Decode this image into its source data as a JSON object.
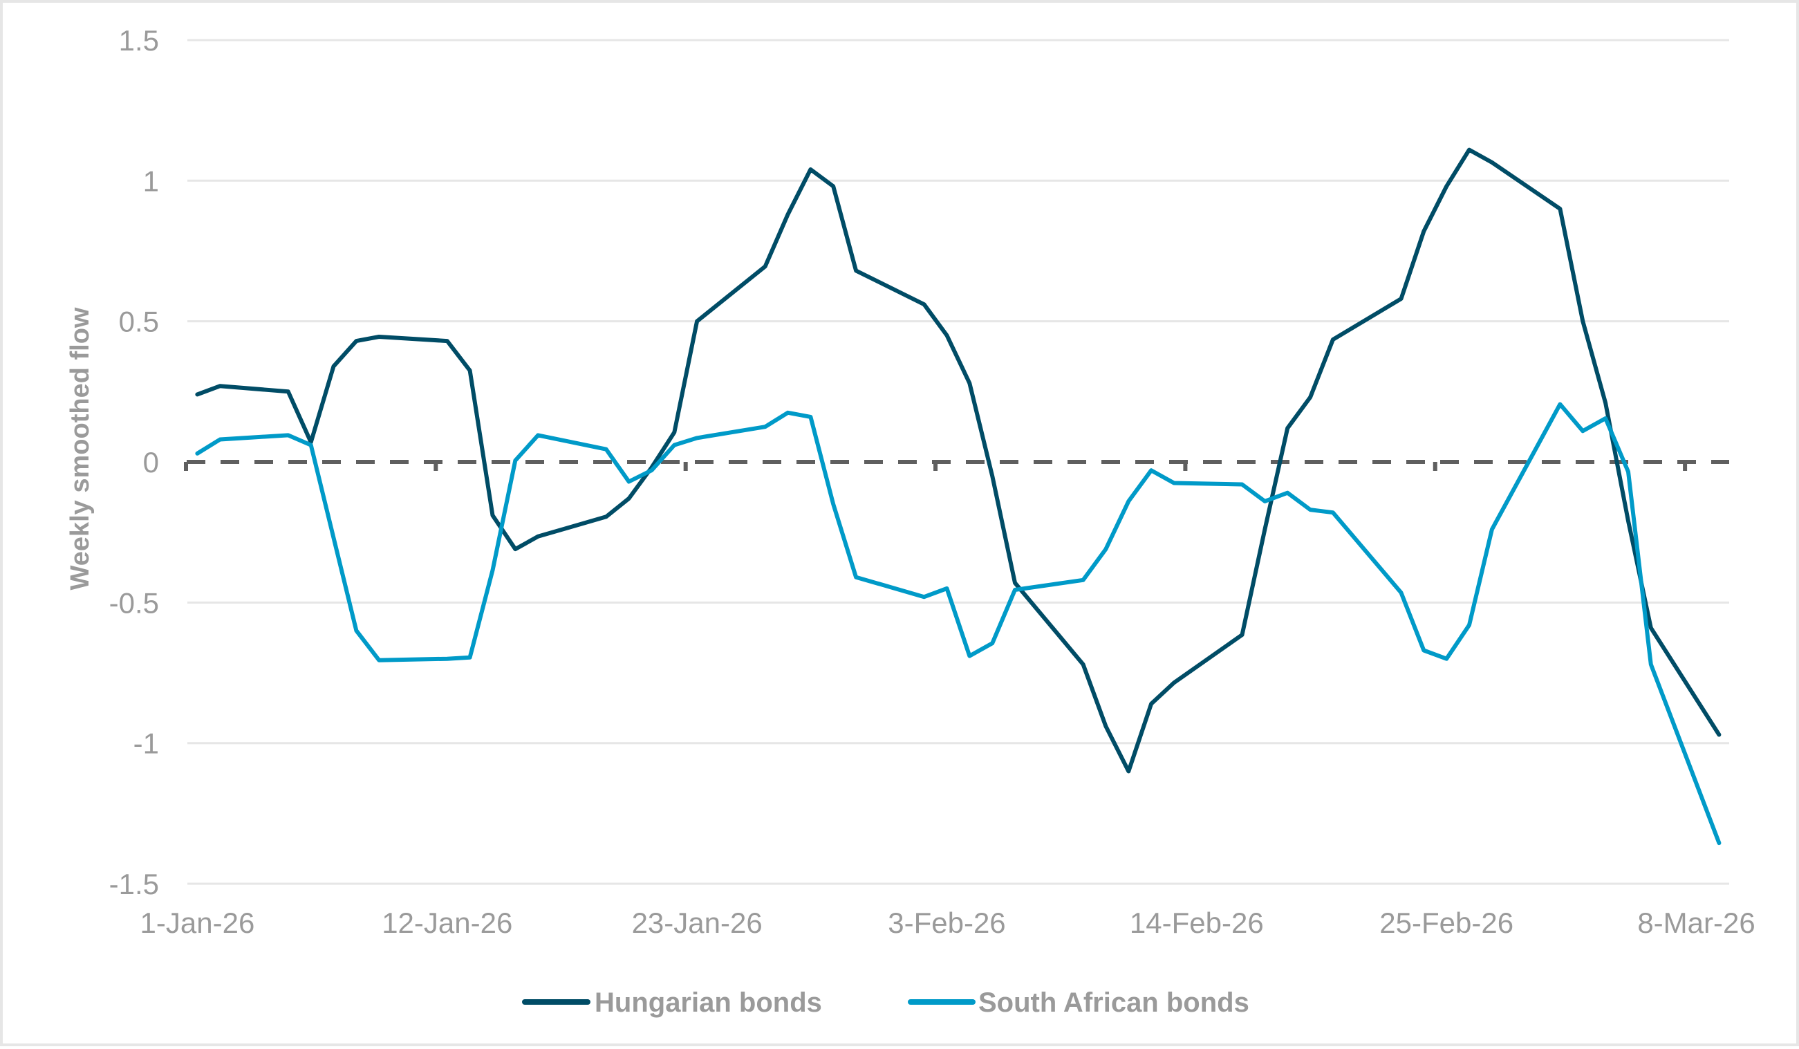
{
  "chart_data": {
    "type": "line",
    "title": "",
    "xlabel": "",
    "ylabel": "Weekly smoothed flow",
    "ylim": [
      -1.5,
      1.5
    ],
    "yticks": [
      1.5,
      1,
      0.5,
      0,
      -0.5,
      -1,
      -1.5
    ],
    "ytick_labels": [
      "1.5",
      "1",
      "0.5",
      "0",
      "-0.5",
      "-1",
      "-1.5"
    ],
    "xtick_labels": [
      "1-Jan-26",
      "12-Jan-26",
      "23-Jan-26",
      "3-Feb-26",
      "14-Feb-26",
      "25-Feb-26",
      "8-Mar-26"
    ],
    "xtick_day_index": [
      0,
      11,
      22,
      33,
      44,
      55,
      66
    ],
    "grid": true,
    "zero_line": {
      "style": "dashed",
      "color": "#5f5f5f"
    },
    "legend_position": "bottom",
    "x": [
      "1-Jan-26",
      "2-Jan-26",
      "5-Jan-26",
      "6-Jan-26",
      "7-Jan-26",
      "8-Jan-26",
      "9-Jan-26",
      "12-Jan-26",
      "13-Jan-26",
      "14-Jan-26",
      "15-Jan-26",
      "16-Jan-26",
      "19-Jan-26",
      "20-Jan-26",
      "21-Jan-26",
      "22-Jan-26",
      "23-Jan-26",
      "26-Jan-26",
      "27-Jan-26",
      "28-Jan-26",
      "29-Jan-26",
      "30-Jan-26",
      "2-Feb-26",
      "3-Feb-26",
      "4-Feb-26",
      "5-Feb-26",
      "6-Feb-26",
      "9-Feb-26",
      "10-Feb-26",
      "11-Feb-26",
      "12-Feb-26",
      "13-Feb-26",
      "16-Feb-26",
      "17-Feb-26",
      "18-Feb-26",
      "19-Feb-26",
      "20-Feb-26",
      "23-Feb-26",
      "24-Feb-26",
      "25-Feb-26",
      "26-Feb-26",
      "27-Feb-26",
      "2-Mar-26",
      "3-Mar-26",
      "4-Mar-26",
      "5-Mar-26",
      "6-Mar-26",
      "9-Mar-26"
    ],
    "x_day_index": [
      0,
      1,
      4,
      5,
      6,
      7,
      8,
      11,
      12,
      13,
      14,
      15,
      18,
      19,
      20,
      21,
      22,
      25,
      26,
      27,
      28,
      29,
      32,
      33,
      34,
      35,
      36,
      39,
      40,
      41,
      42,
      43,
      46,
      47,
      48,
      49,
      50,
      53,
      54,
      55,
      56,
      57,
      60,
      61,
      62,
      63,
      64,
      67
    ],
    "series": [
      {
        "name": "Hungarian bonds",
        "color": "#004c66",
        "values": [
          0.24,
          0.27,
          0.25,
          0.07,
          0.34,
          0.43,
          0.445,
          0.43,
          0.325,
          -0.19,
          -0.31,
          -0.265,
          -0.195,
          -0.13,
          -0.02,
          0.105,
          0.5,
          0.695,
          0.88,
          1.04,
          0.98,
          0.68,
          0.56,
          0.45,
          0.28,
          -0.05,
          -0.43,
          -0.72,
          -0.94,
          -1.1,
          -0.86,
          -0.785,
          -0.615,
          -0.24,
          0.12,
          0.23,
          0.435,
          0.58,
          0.82,
          0.98,
          1.11,
          1.065,
          0.9,
          0.5,
          0.21,
          -0.21,
          -0.59,
          -0.97
        ]
      },
      {
        "name": "South African bonds",
        "color": "#009ac8",
        "values": [
          0.03,
          0.08,
          0.095,
          0.06,
          -0.27,
          -0.6,
          -0.705,
          -0.7,
          -0.695,
          -0.385,
          0.005,
          0.095,
          0.045,
          -0.07,
          -0.03,
          0.06,
          0.085,
          0.125,
          0.175,
          0.16,
          -0.15,
          -0.41,
          -0.48,
          -0.45,
          -0.69,
          -0.645,
          -0.455,
          -0.42,
          -0.31,
          -0.14,
          -0.03,
          -0.075,
          -0.08,
          -0.14,
          -0.11,
          -0.17,
          -0.18,
          -0.465,
          -0.67,
          -0.7,
          -0.58,
          -0.24,
          0.205,
          0.11,
          0.155,
          -0.035,
          -0.72,
          -1.355
        ]
      }
    ]
  },
  "colors": {
    "gridline": "#e6e6e6",
    "axis_text": "#9a9a9a",
    "zero_line": "#5f5f5f",
    "frame_border": "#e6e6e6"
  },
  "legend": {
    "items": [
      {
        "label": "Hungarian bonds",
        "color": "#004c66"
      },
      {
        "label": "South African bonds",
        "color": "#009ac8"
      }
    ]
  },
  "axis": {
    "y_title": "Weekly smoothed flow"
  }
}
